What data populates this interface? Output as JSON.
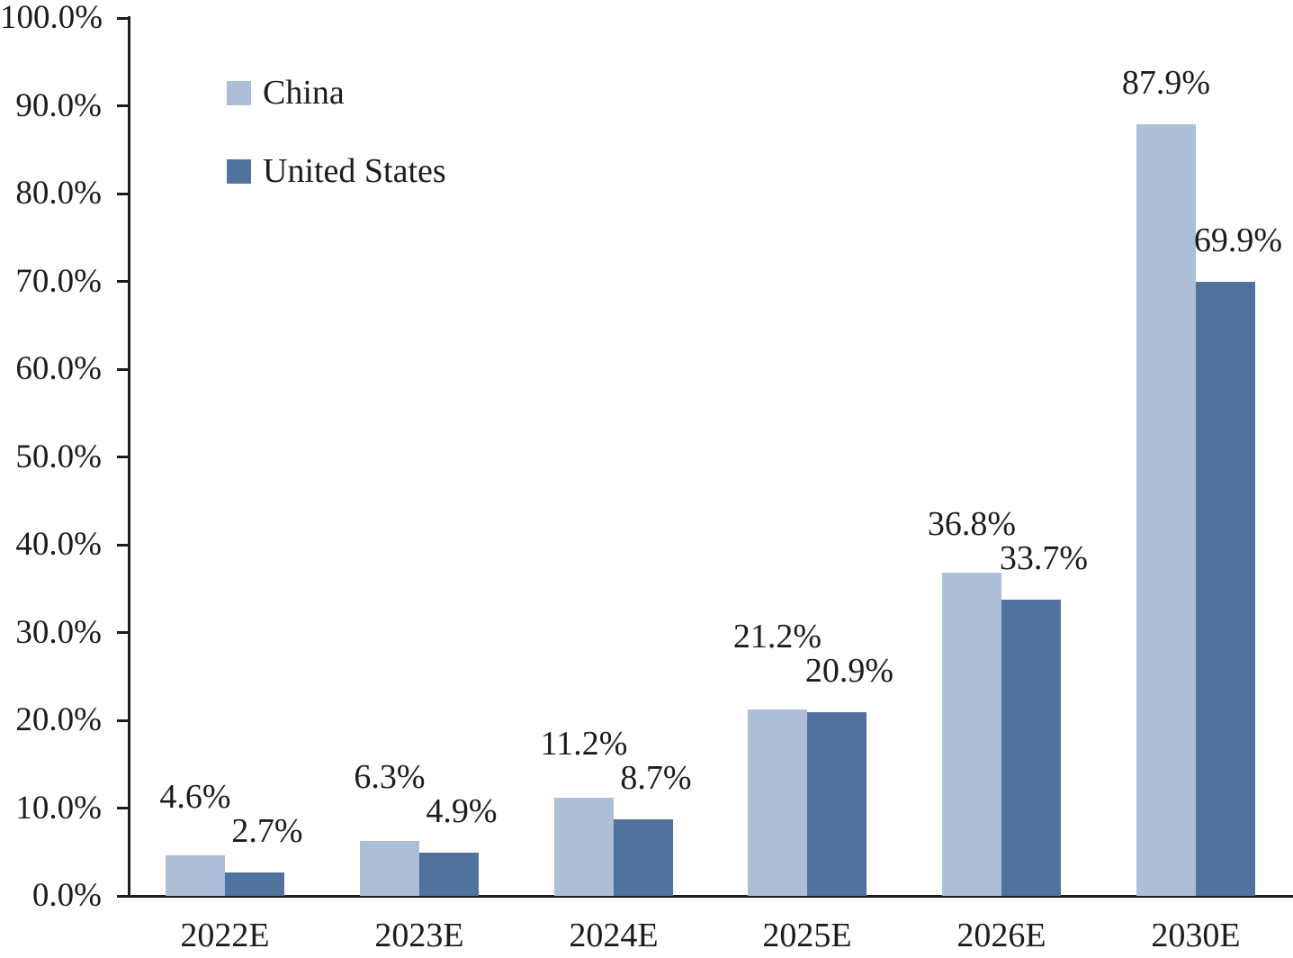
{
  "chart_data": {
    "type": "bar",
    "title": "",
    "categories": [
      "2022E",
      "2023E",
      "2024E",
      "2025E",
      "2026E",
      "2030E"
    ],
    "series": [
      {
        "name": "China",
        "color": "#adbfd6",
        "values": [
          4.6,
          6.3,
          11.2,
          21.2,
          36.8,
          87.9
        ],
        "data_labels": [
          "4.6%",
          "6.3%",
          "11.2%",
          "21.2%",
          "36.8%",
          "87.9%"
        ]
      },
      {
        "name": "United States",
        "color": "#4f739c",
        "values": [
          2.7,
          4.9,
          8.7,
          20.9,
          33.7,
          69.9
        ],
        "data_labels": [
          "2.7%",
          "4.9%",
          "8.7%",
          "20.9%",
          "33.7%",
          "69.9%"
        ]
      }
    ],
    "y_axis": {
      "min": 0,
      "max": 100,
      "step": 10,
      "tick_labels": [
        "0.0%",
        "10.0%",
        "20.0%",
        "30.0%",
        "40.0%",
        "50.0%",
        "60.0%",
        "70.0%",
        "80.0%",
        "90.0%",
        "100.0%"
      ]
    },
    "legend": {
      "position": "top-left",
      "entries": [
        "China",
        "United States"
      ]
    },
    "grid": "off",
    "colors": {
      "axis": "#1c1c1c",
      "text": "#1c1c1c",
      "background": "#ffffff"
    }
  }
}
